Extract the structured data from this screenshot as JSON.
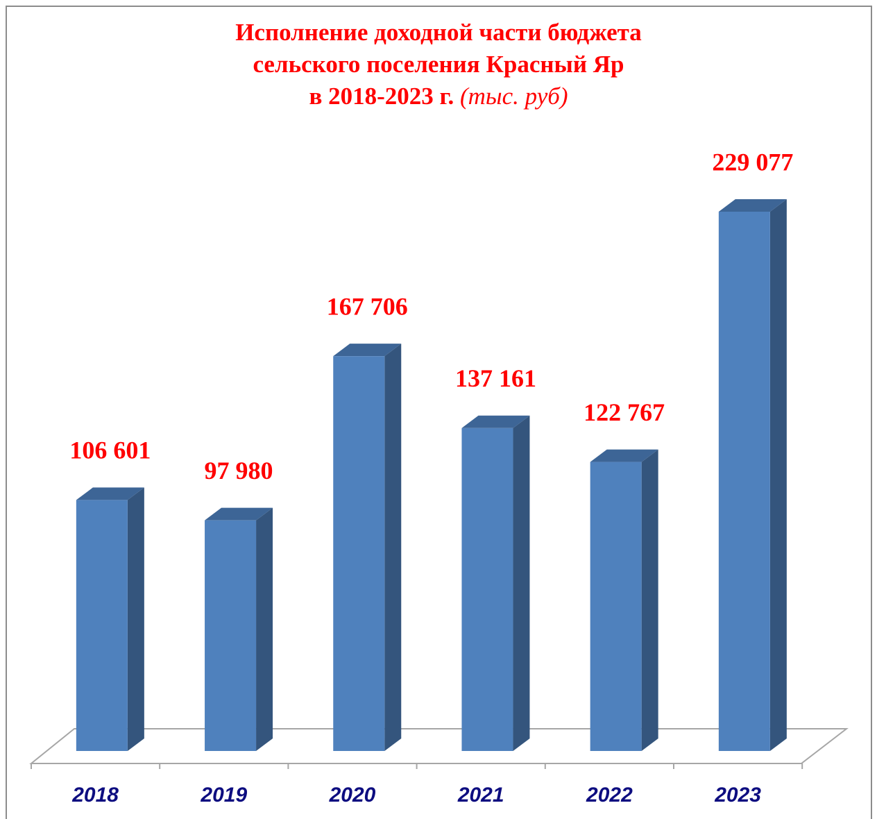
{
  "chart_data": {
    "type": "bar3d",
    "title": [
      "Исполнение доходной части бюджета",
      "сельского поселения Красный Яр",
      "в 2018-2023 г."
    ],
    "subtitle": "(тыс. руб)",
    "categories": [
      "2018",
      "2019",
      "2020",
      "2021",
      "2022",
      "2023"
    ],
    "values": [
      106601,
      97980,
      167706,
      137161,
      122767,
      229077
    ],
    "value_labels": [
      "106 601",
      "97 980",
      "167 706",
      "137 161",
      "122 767",
      "229 077"
    ],
    "color": "#4f81bd",
    "side_color": "#34557d",
    "top_color": "#3d6596",
    "label_color": "#ff0000",
    "category_color": "#0d0d80"
  }
}
